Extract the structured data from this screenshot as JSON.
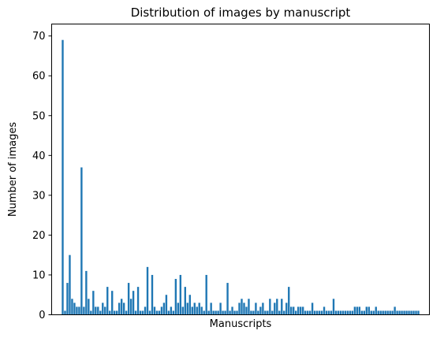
{
  "chart_data": {
    "type": "bar",
    "title": "Distribution of images by manuscript",
    "xlabel": "Manuscripts",
    "ylabel": "Number of images",
    "ylim": [
      0,
      73
    ],
    "yticks": [
      0,
      10,
      20,
      30,
      40,
      50,
      60,
      70
    ],
    "show_xticks": false,
    "grid": false,
    "bar_color": "#1f77b4",
    "values": [
      69,
      1,
      8,
      15,
      4,
      3,
      2,
      2,
      37,
      2,
      11,
      4,
      1,
      6,
      2,
      2,
      1,
      3,
      2,
      7,
      1,
      6,
      1,
      1,
      3,
      4,
      3,
      1,
      8,
      4,
      6,
      1,
      7,
      1,
      1,
      2,
      12,
      1,
      10,
      2,
      1,
      1,
      2,
      3,
      5,
      1,
      2,
      1,
      9,
      3,
      10,
      2,
      7,
      3,
      5,
      2,
      3,
      2,
      3,
      2,
      1,
      10,
      1,
      3,
      1,
      1,
      1,
      3,
      1,
      1,
      8,
      1,
      2,
      1,
      1,
      3,
      4,
      3,
      2,
      4,
      1,
      1,
      3,
      1,
      2,
      3,
      1,
      1,
      4,
      1,
      3,
      4,
      1,
      4,
      1,
      3,
      7,
      2,
      2,
      1,
      2,
      2,
      2,
      1,
      1,
      1,
      3,
      1,
      1,
      1,
      1,
      2,
      1,
      1,
      1,
      4,
      1,
      1,
      1,
      1,
      1,
      1,
      1,
      1,
      2,
      2,
      2,
      1,
      1,
      2,
      2,
      1,
      1,
      2,
      1,
      1,
      1,
      1,
      1,
      1,
      1,
      2,
      1,
      1,
      1,
      1,
      1,
      1,
      1,
      1,
      1,
      1
    ]
  }
}
